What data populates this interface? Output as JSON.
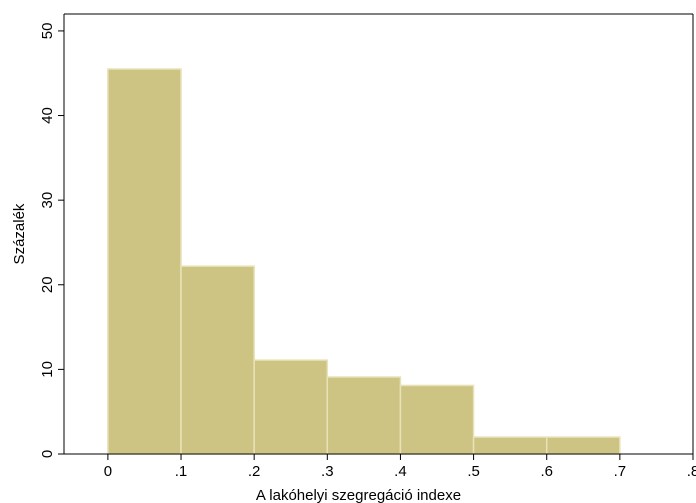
{
  "chart_data": {
    "type": "bar",
    "title": "",
    "xlabel": "A lakóhelyi szegregáció indexe",
    "ylabel": "Százalék",
    "bins": [
      {
        "x0": 0.0,
        "x1": 0.1,
        "value": 45.5
      },
      {
        "x0": 0.1,
        "x1": 0.2,
        "value": 22.2
      },
      {
        "x0": 0.2,
        "x1": 0.3,
        "value": 11.1
      },
      {
        "x0": 0.3,
        "x1": 0.4,
        "value": 9.1
      },
      {
        "x0": 0.4,
        "x1": 0.5,
        "value": 8.1
      },
      {
        "x0": 0.5,
        "x1": 0.6,
        "value": 2.0
      },
      {
        "x0": 0.6,
        "x1": 0.7,
        "value": 2.0
      }
    ],
    "xlim": [
      -0.06,
      0.8
    ],
    "ylim": [
      0,
      52
    ],
    "xticks": [
      {
        "value": 0.0,
        "label": "0"
      },
      {
        "value": 0.1,
        "label": ".1"
      },
      {
        "value": 0.2,
        "label": ".2"
      },
      {
        "value": 0.3,
        "label": ".3"
      },
      {
        "value": 0.4,
        "label": ".4"
      },
      {
        "value": 0.5,
        "label": ".5"
      },
      {
        "value": 0.6,
        "label": ".6"
      },
      {
        "value": 0.7,
        "label": ".7"
      },
      {
        "value": 0.8,
        "label": ".8"
      }
    ],
    "yticks": [
      {
        "value": 0,
        "label": "0"
      },
      {
        "value": 10,
        "label": "10"
      },
      {
        "value": 20,
        "label": "20"
      },
      {
        "value": 30,
        "label": "30"
      },
      {
        "value": 40,
        "label": "40"
      },
      {
        "value": 50,
        "label": "50"
      }
    ],
    "grid": false,
    "colors": {
      "bar_fill": "#cdc382",
      "bar_edge": "#e8e2b8",
      "axis": "#000000",
      "background": "#ffffff"
    }
  }
}
